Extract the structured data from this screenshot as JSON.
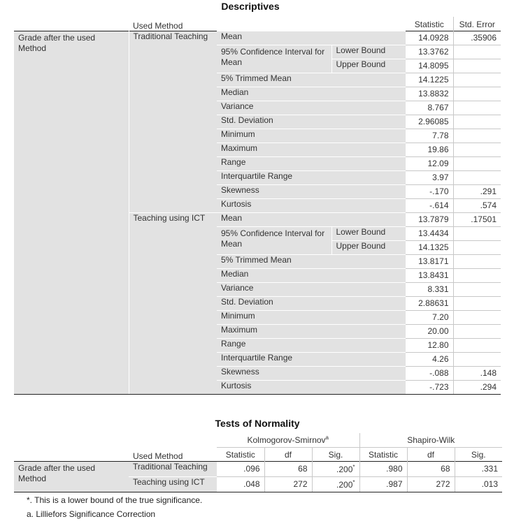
{
  "descriptives": {
    "title": "Descriptives",
    "header": {
      "used_method": "Used Method",
      "statistic": "Statistic",
      "std_error": "Std. Error"
    },
    "dependent": "Grade after the used Method",
    "groups": [
      {
        "method": "Traditional Teaching",
        "rows": [
          {
            "label": "Mean",
            "sub": "",
            "statistic": "14.0928",
            "std_error": ".35906"
          },
          {
            "label": "95% Confidence Interval for Mean",
            "sub": "Lower Bound",
            "statistic": "13.3762",
            "std_error": ""
          },
          {
            "label": "",
            "sub": "Upper Bound",
            "statistic": "14.8095",
            "std_error": ""
          },
          {
            "label": "5% Trimmed Mean",
            "sub": "",
            "statistic": "14.1225",
            "std_error": ""
          },
          {
            "label": "Median",
            "sub": "",
            "statistic": "13.8832",
            "std_error": ""
          },
          {
            "label": "Variance",
            "sub": "",
            "statistic": "8.767",
            "std_error": ""
          },
          {
            "label": "Std. Deviation",
            "sub": "",
            "statistic": "2.96085",
            "std_error": ""
          },
          {
            "label": "Minimum",
            "sub": "",
            "statistic": "7.78",
            "std_error": ""
          },
          {
            "label": "Maximum",
            "sub": "",
            "statistic": "19.86",
            "std_error": ""
          },
          {
            "label": "Range",
            "sub": "",
            "statistic": "12.09",
            "std_error": ""
          },
          {
            "label": "Interquartile Range",
            "sub": "",
            "statistic": "3.97",
            "std_error": ""
          },
          {
            "label": "Skewness",
            "sub": "",
            "statistic": "-.170",
            "std_error": ".291"
          },
          {
            "label": "Kurtosis",
            "sub": "",
            "statistic": "-.614",
            "std_error": ".574"
          }
        ]
      },
      {
        "method": "Teaching using ICT",
        "rows": [
          {
            "label": "Mean",
            "sub": "",
            "statistic": "13.7879",
            "std_error": ".17501"
          },
          {
            "label": "95% Confidence Interval for Mean",
            "sub": "Lower Bound",
            "statistic": "13.4434",
            "std_error": ""
          },
          {
            "label": "",
            "sub": "Upper Bound",
            "statistic": "14.1325",
            "std_error": ""
          },
          {
            "label": "5% Trimmed Mean",
            "sub": "",
            "statistic": "13.8171",
            "std_error": ""
          },
          {
            "label": "Median",
            "sub": "",
            "statistic": "13.8431",
            "std_error": ""
          },
          {
            "label": "Variance",
            "sub": "",
            "statistic": "8.331",
            "std_error": ""
          },
          {
            "label": "Std. Deviation",
            "sub": "",
            "statistic": "2.88631",
            "std_error": ""
          },
          {
            "label": "Minimum",
            "sub": "",
            "statistic": "7.20",
            "std_error": ""
          },
          {
            "label": "Maximum",
            "sub": "",
            "statistic": "20.00",
            "std_error": ""
          },
          {
            "label": "Range",
            "sub": "",
            "statistic": "12.80",
            "std_error": ""
          },
          {
            "label": "Interquartile Range",
            "sub": "",
            "statistic": "4.26",
            "std_error": ""
          },
          {
            "label": "Skewness",
            "sub": "",
            "statistic": "-.088",
            "std_error": ".148"
          },
          {
            "label": "Kurtosis",
            "sub": "",
            "statistic": "-.723",
            "std_error": ".294"
          }
        ]
      }
    ]
  },
  "normality": {
    "title": "Tests of Normality",
    "ks_header": "Kolmogorov-Smirnov",
    "ks_sup": "a",
    "sw_header": "Shapiro-Wilk",
    "used_method": "Used Method",
    "subheaders": {
      "statistic": "Statistic",
      "df": "df",
      "sig": "Sig."
    },
    "dependent": "Grade after the used Method",
    "rows": [
      {
        "method": "Traditional Teaching",
        "ks_stat": ".096",
        "ks_df": "68",
        "ks_sig": ".200",
        "ks_sig_sup": "*",
        "sw_stat": ".980",
        "sw_df": "68",
        "sw_sig": ".331"
      },
      {
        "method": "Teaching using ICT",
        "ks_stat": ".048",
        "ks_df": "272",
        "ks_sig": ".200",
        "ks_sig_sup": "*",
        "sw_stat": ".987",
        "sw_df": "272",
        "sw_sig": ".013"
      }
    ],
    "footnotes": [
      "*. This is a lower bound of the true significance.",
      "a. Lilliefors Significance Correction"
    ]
  }
}
